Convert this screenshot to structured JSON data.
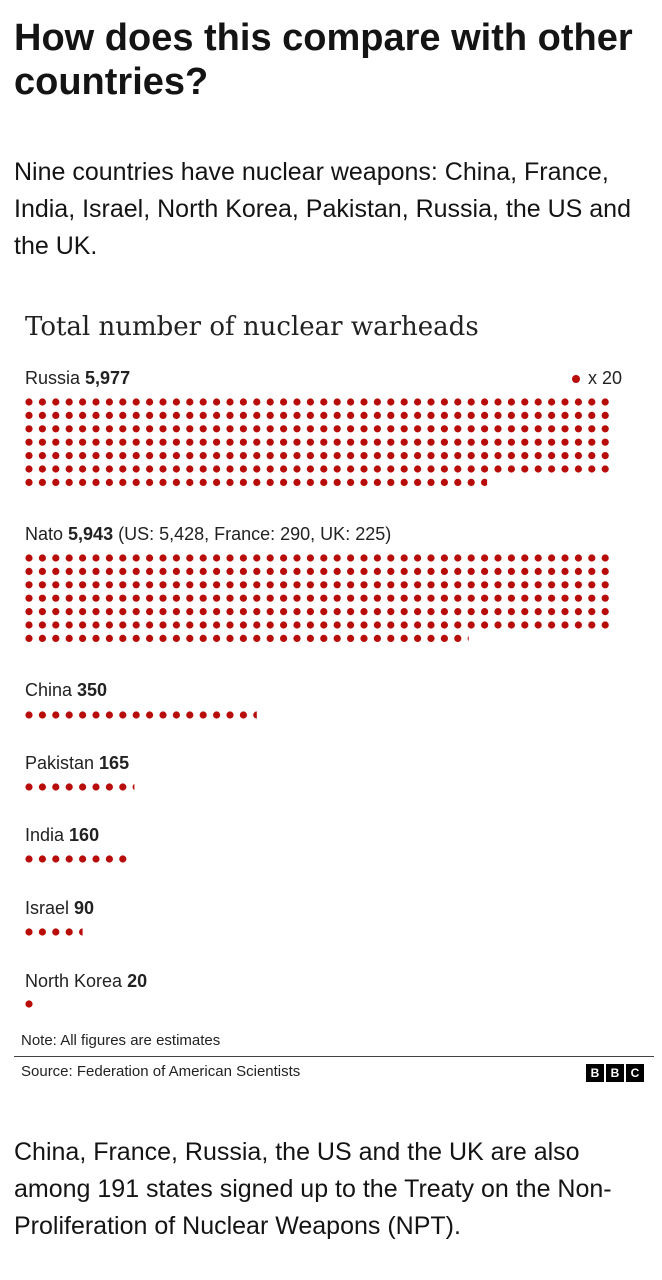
{
  "article": {
    "heading": "How does this compare with other countries?",
    "intro": "Nine countries have nuclear weapons: China, France, India, Israel, North Korea, Pakistan, Russia, the US and the UK.",
    "outro": "China, France, Russia, the US and the UK are also among 191 states signed up to the Treaty on the Non-Proliferation of Nuclear Weapons (NPT)."
  },
  "chart_data": {
    "type": "dot-matrix",
    "title": "Total number of nuclear warheads",
    "legend": {
      "label": "x 20",
      "unit_value": 20,
      "placement": "top-right"
    },
    "color": "#b80c09",
    "series": [
      {
        "name": "Russia",
        "value": 5977,
        "value_label": "5,977",
        "breakdown": ""
      },
      {
        "name": "Nato",
        "value": 5943,
        "value_label": "5,943",
        "breakdown": "(US: 5,428, France: 290, UK: 225)"
      },
      {
        "name": "China",
        "value": 350,
        "value_label": "350",
        "breakdown": ""
      },
      {
        "name": "Pakistan",
        "value": 165,
        "value_label": "165",
        "breakdown": ""
      },
      {
        "name": "India",
        "value": 160,
        "value_label": "160",
        "breakdown": ""
      },
      {
        "name": "Israel",
        "value": 90,
        "value_label": "90",
        "breakdown": ""
      },
      {
        "name": "North Korea",
        "value": 20,
        "value_label": "20",
        "breakdown": ""
      }
    ],
    "note": "Note: All figures are estimates",
    "source": "Source: Federation of American Scientists",
    "brand": [
      "B",
      "B",
      "C"
    ]
  }
}
